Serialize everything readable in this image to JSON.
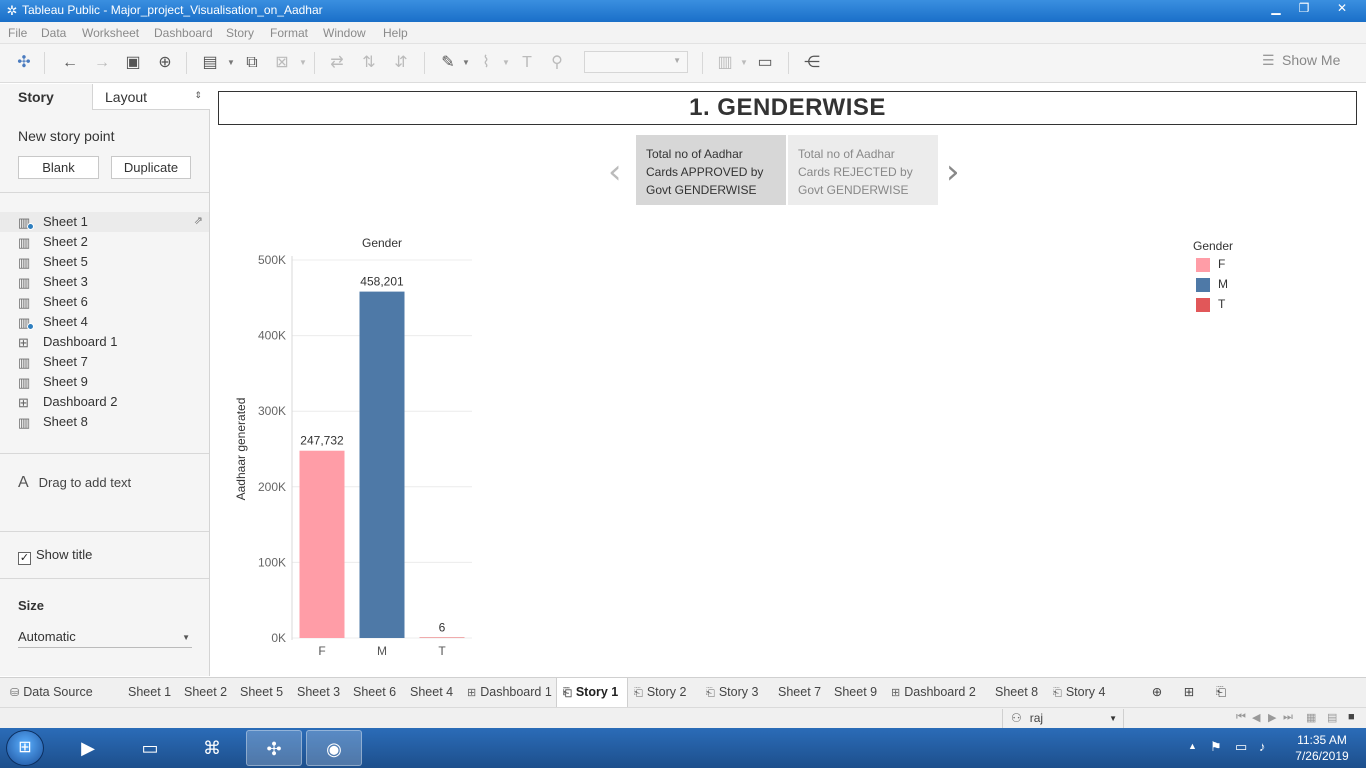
{
  "window": {
    "title": "Tableau Public - Major_project_Visualisation_on_Aadhar",
    "controls": [
      "minimize",
      "maximize",
      "close"
    ]
  },
  "menu": [
    "File",
    "Data",
    "Worksheet",
    "Dashboard",
    "Story",
    "Format",
    "Window",
    "Help"
  ],
  "toolbar": {
    "show_me": "Show Me",
    "fit_value": ""
  },
  "left_panel": {
    "tabs": {
      "story": "Story",
      "layout": "Layout"
    },
    "new_story_point": "New story point",
    "blank_btn": "Blank",
    "duplicate_btn": "Duplicate",
    "sheets": [
      {
        "label": "Sheet 1",
        "icon": "worksheet-icon",
        "badge": true,
        "selected": true
      },
      {
        "label": "Sheet 2",
        "icon": "worksheet-icon",
        "badge": false
      },
      {
        "label": "Sheet 5",
        "icon": "worksheet-icon",
        "badge": false
      },
      {
        "label": "Sheet 3",
        "icon": "worksheet-icon",
        "badge": false
      },
      {
        "label": "Sheet 6",
        "icon": "worksheet-icon",
        "badge": false
      },
      {
        "label": "Sheet 4",
        "icon": "worksheet-icon",
        "badge": true
      },
      {
        "label": "Dashboard 1",
        "icon": "dashboard-icon",
        "badge": false
      },
      {
        "label": "Sheet 7",
        "icon": "worksheet-icon",
        "badge": false
      },
      {
        "label": "Sheet 9",
        "icon": "worksheet-icon",
        "badge": false
      },
      {
        "label": "Dashboard 2",
        "icon": "dashboard-icon",
        "badge": false
      },
      {
        "label": "Sheet 8",
        "icon": "worksheet-icon",
        "badge": false
      }
    ],
    "drag_text": "Drag to add text",
    "show_title": "Show title",
    "show_title_checked": true,
    "size_label": "Size",
    "size_value": "Automatic"
  },
  "story": {
    "title": "1. GENDERWISE",
    "points": [
      {
        "text": "Total no of Aadhar\nCards  APPROVED by\nGovt GENDERWISE",
        "selected": true
      },
      {
        "text": "Total no of Aadhar\nCards  REJECTED by\nGovt GENDERWISE",
        "selected": false
      }
    ]
  },
  "chart_data": {
    "type": "bar",
    "header": "Gender",
    "categories": [
      "F",
      "M",
      "T"
    ],
    "values": [
      247732,
      458201,
      6
    ],
    "value_labels": [
      "247,732",
      "458,201",
      "6"
    ],
    "colors": [
      "#ff9da7",
      "#4e79a7",
      "#e15759"
    ],
    "ylabel": "Aadhaar generated",
    "ylim": [
      0,
      500000
    ],
    "yticks": [
      0,
      100000,
      200000,
      300000,
      400000,
      500000
    ],
    "ytick_labels": [
      "0K",
      "100K",
      "200K",
      "300K",
      "400K",
      "500K"
    ],
    "grid": true,
    "legend": {
      "title": "Gender",
      "position": "right",
      "items": [
        {
          "label": "F",
          "color": "#ff9da7"
        },
        {
          "label": "M",
          "color": "#4e79a7"
        },
        {
          "label": "T",
          "color": "#e15759"
        }
      ]
    }
  },
  "bottom_tabs": [
    {
      "label": "Data Source",
      "icon": "database-icon"
    },
    {
      "label": "Sheet 1",
      "icon": ""
    },
    {
      "label": "Sheet 2",
      "icon": ""
    },
    {
      "label": "Sheet 5",
      "icon": ""
    },
    {
      "label": "Sheet 3",
      "icon": ""
    },
    {
      "label": "Sheet 6",
      "icon": ""
    },
    {
      "label": "Sheet 4",
      "icon": ""
    },
    {
      "label": "Dashboard 1",
      "icon": "dashboard-icon"
    },
    {
      "label": "Story 1",
      "icon": "story-icon",
      "selected": true
    },
    {
      "label": "Story 2",
      "icon": "story-icon"
    },
    {
      "label": "Story 3",
      "icon": "story-icon"
    },
    {
      "label": "Sheet 7",
      "icon": ""
    },
    {
      "label": "Sheet 9",
      "icon": ""
    },
    {
      "label": "Dashboard 2",
      "icon": "dashboard-icon"
    },
    {
      "label": "Sheet 8",
      "icon": ""
    },
    {
      "label": "Story 4",
      "icon": "story-icon"
    }
  ],
  "status": {
    "user": "raj"
  },
  "taskbar": {
    "time": "11:35 AM",
    "date": "7/26/2019"
  }
}
